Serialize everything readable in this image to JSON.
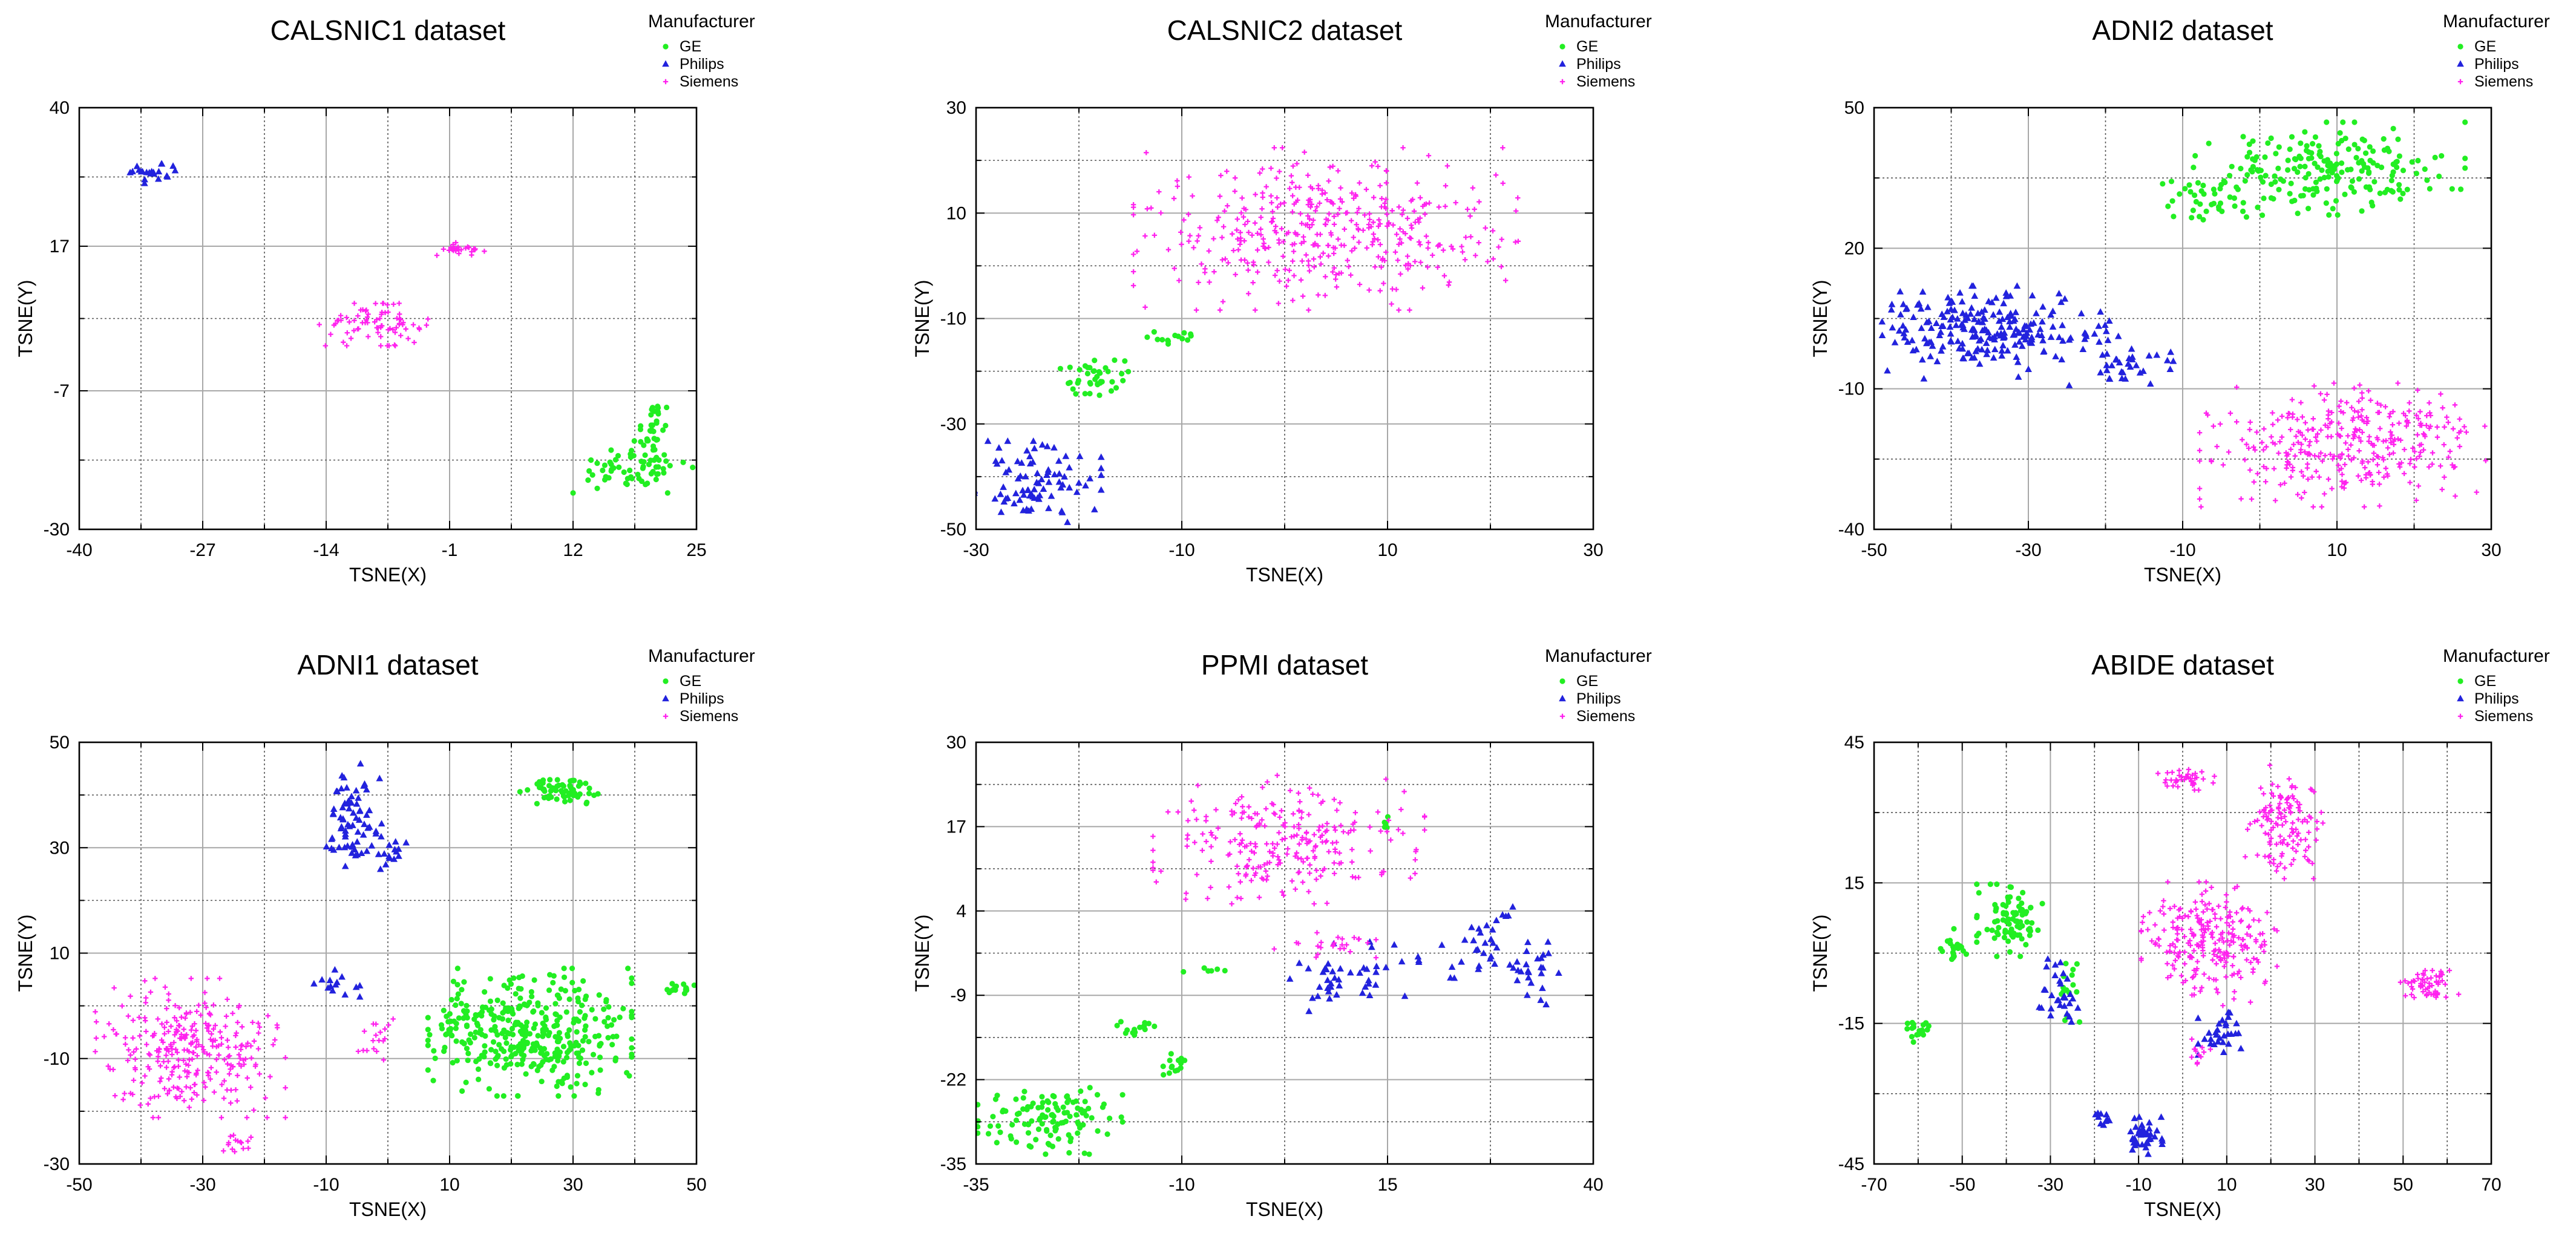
{
  "chart_data": [
    {
      "type": "scatter",
      "title": "CALSNIC1 dataset",
      "xlabel": "TSNE(X)",
      "ylabel": "TSNE(Y)",
      "xlim": [
        -40,
        25
      ],
      "ylim": [
        -30,
        40
      ],
      "xticks": [
        -40,
        -27,
        -14,
        -1,
        12,
        25
      ],
      "yticks": [
        -30,
        -7,
        17,
        40
      ],
      "grid": true,
      "legend_title": "Manufacturer",
      "legend_position": "top-right",
      "series": [
        {
          "name": "GE",
          "color": "#22ee22",
          "marker": "circle",
          "clusters": [
            {
              "cx": 18,
              "cy": -20,
              "sx": 3.0,
              "sy": 1.8,
              "n": 60
            },
            {
              "cx": 20.5,
              "cy": -13,
              "sx": 1.0,
              "sy": 2.5,
              "n": 35
            }
          ]
        },
        {
          "name": "Philips",
          "color": "#2222dd",
          "marker": "triangle",
          "clusters": [
            {
              "cx": -32,
              "cy": 29,
              "sx": 1.2,
              "sy": 0.8,
              "n": 22
            }
          ]
        },
        {
          "name": "Siemens",
          "color": "#ff22ee",
          "marker": "plus",
          "clusters": [
            {
              "cx": 0.3,
              "cy": 16.5,
              "sx": 1.2,
              "sy": 0.5,
              "n": 25
            },
            {
              "cx": -9,
              "cy": 4,
              "sx": 2.6,
              "sy": 1.6,
              "n": 80
            }
          ]
        }
      ]
    },
    {
      "type": "scatter",
      "title": "CALSNIC2 dataset",
      "xlabel": "TSNE(X)",
      "ylabel": "TSNE(Y)",
      "xlim": [
        -30,
        30
      ],
      "ylim": [
        -50,
        30
      ],
      "xticks": [
        -30,
        -10,
        10,
        30
      ],
      "yticks": [
        -50,
        -30,
        -10,
        10,
        30
      ],
      "grid": true,
      "legend_title": "Manufacturer",
      "legend_position": "top-right",
      "series": [
        {
          "name": "GE",
          "color": "#22ee22",
          "marker": "circle",
          "clusters": [
            {
              "cx": -18.5,
              "cy": -21,
              "sx": 1.5,
              "sy": 1.8,
              "n": 40
            },
            {
              "cx": -10.5,
              "cy": -13.5,
              "sx": 1.3,
              "sy": 0.6,
              "n": 14
            }
          ]
        },
        {
          "name": "Philips",
          "color": "#2222dd",
          "marker": "triangle",
          "clusters": [
            {
              "cx": -24,
              "cy": -41,
              "sx": 2.8,
              "sy": 3.5,
              "n": 85
            }
          ]
        },
        {
          "name": "Siemens",
          "color": "#ff22ee",
          "marker": "plus",
          "clusters": [
            {
              "cx": 4,
              "cy": 7,
              "sx": 8.5,
              "sy": 7.0,
              "n": 420
            }
          ]
        }
      ]
    },
    {
      "type": "scatter",
      "title": "ADNI2 dataset",
      "xlabel": "TSNE(X)",
      "ylabel": "TSNE(Y)",
      "xlim": [
        -50,
        30
      ],
      "ylim": [
        -40,
        50
      ],
      "xticks": [
        -50,
        -30,
        -10,
        10,
        30
      ],
      "yticks": [
        -40,
        -10,
        20,
        50
      ],
      "grid": true,
      "legend_title": "Manufacturer",
      "legend_position": "top-right",
      "series": [
        {
          "name": "GE",
          "color": "#22ee22",
          "marker": "circle",
          "clusters": [
            {
              "cx": 9,
              "cy": 37,
              "sx": 8.0,
              "sy": 4.5,
              "n": 200
            },
            {
              "cx": -6,
              "cy": 30,
              "sx": 3.0,
              "sy": 2.5,
              "n": 40
            }
          ]
        },
        {
          "name": "Philips",
          "color": "#2222dd",
          "marker": "triangle",
          "clusters": [
            {
              "cx": -36,
              "cy": 2,
              "sx": 7.5,
              "sy": 4.5,
              "n": 230
            },
            {
              "cx": -17,
              "cy": -4,
              "sx": 3.5,
              "sy": 2.5,
              "n": 35
            }
          ]
        },
        {
          "name": "Siemens",
          "color": "#ff22ee",
          "marker": "plus",
          "clusters": [
            {
              "cx": 12,
              "cy": -22,
              "sx": 9.0,
              "sy": 6.0,
              "n": 350
            }
          ]
        }
      ]
    },
    {
      "type": "scatter",
      "title": "ADNI1 dataset",
      "xlabel": "TSNE(X)",
      "ylabel": "TSNE(Y)",
      "xlim": [
        -50,
        50
      ],
      "ylim": [
        -30,
        50
      ],
      "xticks": [
        -50,
        -30,
        -10,
        10,
        30,
        50
      ],
      "yticks": [
        -30,
        -10,
        10,
        30,
        50
      ],
      "grid": true,
      "legend_title": "Manufacturer",
      "legend_position": "top-right",
      "series": [
        {
          "name": "GE",
          "color": "#22ee22",
          "marker": "circle",
          "clusters": [
            {
              "cx": 23,
              "cy": -5,
              "sx": 7.5,
              "sy": 5.5,
              "n": 380
            },
            {
              "cx": 28,
              "cy": 41,
              "sx": 3.0,
              "sy": 1.2,
              "n": 60
            },
            {
              "cx": 47,
              "cy": 3.5,
              "sx": 1.2,
              "sy": 0.8,
              "n": 14
            },
            {
              "cx": 10,
              "cy": -4.5,
              "sx": 1.3,
              "sy": 1.0,
              "n": 12
            }
          ]
        },
        {
          "name": "Philips",
          "color": "#2222dd",
          "marker": "triangle",
          "clusters": [
            {
              "cx": -6,
              "cy": 36,
              "sx": 2.5,
              "sy": 4.5,
              "n": 60
            },
            {
              "cx": -1.5,
              "cy": 30,
              "sx": 2.5,
              "sy": 2.0,
              "n": 25
            },
            {
              "cx": -8.5,
              "cy": 3.5,
              "sx": 1.8,
              "sy": 1.5,
              "n": 14
            }
          ]
        },
        {
          "name": "Siemens",
          "color": "#ff22ee",
          "marker": "plus",
          "clusters": [
            {
              "cx": -32,
              "cy": -8,
              "sx": 7.0,
              "sy": 6.0,
              "n": 300
            },
            {
              "cx": -24,
              "cy": -26,
              "sx": 1.2,
              "sy": 1.2,
              "n": 15
            },
            {
              "cx": -1.5,
              "cy": -6.5,
              "sx": 1.5,
              "sy": 2.0,
              "n": 18
            }
          ]
        }
      ]
    },
    {
      "type": "scatter",
      "title": "PPMI dataset",
      "xlabel": "TSNE(X)",
      "ylabel": "TSNE(Y)",
      "xlim": [
        -35,
        40
      ],
      "ylim": [
        -35,
        30
      ],
      "xticks": [
        -35,
        -10,
        15,
        40
      ],
      "yticks": [
        -35,
        -22,
        -9,
        4,
        17,
        30
      ],
      "grid": true,
      "legend_title": "Manufacturer",
      "legend_position": "top-right",
      "series": [
        {
          "name": "GE",
          "color": "#22ee22",
          "marker": "circle",
          "clusters": [
            {
              "cx": -26,
              "cy": -28,
              "sx": 4.0,
              "sy": 2.5,
              "n": 120
            },
            {
              "cx": -15,
              "cy": -14,
              "sx": 1.3,
              "sy": 0.8,
              "n": 15
            },
            {
              "cx": -11,
              "cy": -19.5,
              "sx": 1.0,
              "sy": 1.3,
              "n": 14
            },
            {
              "cx": -6.5,
              "cy": -5.5,
              "sx": 1.5,
              "sy": 0.4,
              "n": 6
            },
            {
              "cx": 15,
              "cy": 18,
              "sx": 0.3,
              "sy": 0.8,
              "n": 5
            }
          ]
        },
        {
          "name": "Philips",
          "color": "#2222dd",
          "marker": "triangle",
          "clusters": [
            {
              "cx": 10,
              "cy": -6,
              "sx": 4.0,
              "sy": 2.5,
              "n": 45
            },
            {
              "cx": 26,
              "cy": -2,
              "sx": 2.0,
              "sy": 3.0,
              "n": 30
            },
            {
              "cx": 32.5,
              "cy": -6,
              "sx": 1.5,
              "sy": 2.5,
              "n": 25
            }
          ]
        },
        {
          "name": "Siemens",
          "color": "#ff22ee",
          "marker": "plus",
          "clusters": [
            {
              "cx": 3,
              "cy": 15,
              "sx": 7.5,
              "sy": 4.5,
              "n": 250
            },
            {
              "cx": 7,
              "cy": -1,
              "sx": 3.0,
              "sy": 1.0,
              "n": 25
            }
          ]
        }
      ]
    },
    {
      "type": "scatter",
      "title": "ABIDE dataset",
      "xlabel": "TSNE(X)",
      "ylabel": "TSNE(Y)",
      "xlim": [
        -70,
        70
      ],
      "ylim": [
        -45,
        45
      ],
      "xticks": [
        -70,
        -50,
        -30,
        -10,
        10,
        30,
        50,
        70
      ],
      "yticks": [
        -45,
        -15,
        15,
        45
      ],
      "grid": true,
      "legend_title": "Manufacturer",
      "legend_position": "top-right",
      "series": [
        {
          "name": "GE",
          "color": "#22ee22",
          "marker": "circle",
          "clusters": [
            {
              "cx": -39,
              "cy": 7,
              "sx": 3.5,
              "sy": 3.5,
              "n": 90
            },
            {
              "cx": -52,
              "cy": 2,
              "sx": 1.5,
              "sy": 1.5,
              "n": 20
            },
            {
              "cx": -60,
              "cy": -17,
              "sx": 1.5,
              "sy": 1.2,
              "n": 20
            },
            {
              "cx": -25,
              "cy": -7,
              "sx": 1.5,
              "sy": 3.5,
              "n": 15
            }
          ]
        },
        {
          "name": "Philips",
          "color": "#2222dd",
          "marker": "triangle",
          "clusters": [
            {
              "cx": -28,
              "cy": -9,
              "sx": 2.5,
              "sy": 3.5,
              "n": 30
            },
            {
              "cx": 9,
              "cy": -17,
              "sx": 2.5,
              "sy": 3.0,
              "n": 30
            },
            {
              "cx": -18,
              "cy": -35,
              "sx": 1.2,
              "sy": 0.8,
              "n": 10
            },
            {
              "cx": -9,
              "cy": -39,
              "sx": 2.2,
              "sy": 1.8,
              "n": 40
            }
          ]
        },
        {
          "name": "Siemens",
          "color": "#ff22ee",
          "marker": "plus",
          "clusters": [
            {
              "cx": 1,
              "cy": 37,
              "sx": 3.0,
              "sy": 1.0,
              "n": 40
            },
            {
              "cx": 23,
              "cy": 28,
              "sx": 4.0,
              "sy": 5.5,
              "n": 130
            },
            {
              "cx": 6,
              "cy": 2,
              "sx": 7.0,
              "sy": 6.0,
              "n": 250
            },
            {
              "cx": 56,
              "cy": -7,
              "sx": 3.0,
              "sy": 1.5,
              "n": 60
            },
            {
              "cx": 3,
              "cy": -21,
              "sx": 1.5,
              "sy": 1.2,
              "n": 12
            }
          ]
        }
      ]
    }
  ]
}
